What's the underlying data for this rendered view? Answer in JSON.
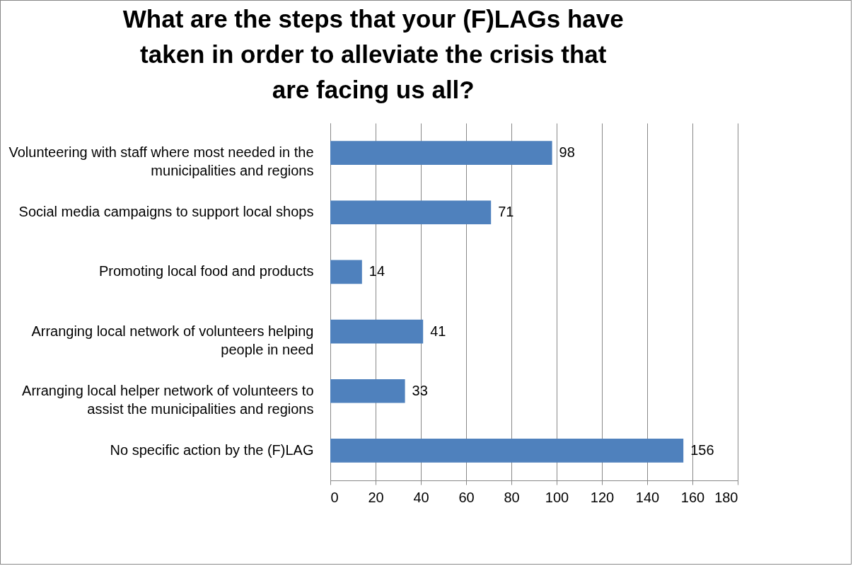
{
  "chart_data": {
    "type": "bar",
    "orientation": "horizontal",
    "title": "What are the steps that your (F)LAGs have taken in order to alleviate the crisis that are facing us all?",
    "categories": [
      "Volunteering with staff where most needed in the municipalities and regions",
      "Social media campaigns to support local shops",
      "Promoting local food and products",
      "Arranging local network of volunteers helping people in need",
      "Arranging local helper network of volunteers to assist the municipalities and regions",
      "No specific action by the (F)LAG"
    ],
    "values": [
      98,
      71,
      14,
      41,
      33,
      156
    ],
    "color": "#4f81bd",
    "xlim": [
      0,
      180
    ],
    "xticks": [
      0,
      20,
      40,
      60,
      80,
      100,
      120,
      140,
      160,
      180
    ],
    "grid": "x",
    "data_labels": true
  }
}
